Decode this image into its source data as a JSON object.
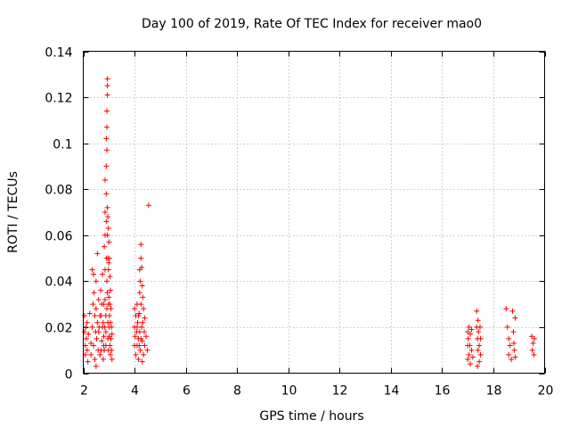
{
  "chart_data": {
    "type": "scatter",
    "title": "Day 100 of 2019, Rate Of TEC Index for receiver mao0",
    "xlabel": "GPS time / hours",
    "ylabel": "ROTI / TECUs",
    "xlim": [
      2,
      20
    ],
    "ylim": [
      0,
      0.14
    ],
    "xticks": [
      2,
      4,
      6,
      8,
      10,
      12,
      14,
      16,
      18,
      20
    ],
    "xtick_labels": [
      "2",
      "4",
      "6",
      "8",
      "10",
      "12",
      "14",
      "16",
      "18",
      "20"
    ],
    "yticks": [
      0,
      0.02,
      0.04,
      0.06,
      0.08,
      0.1,
      0.12,
      0.14
    ],
    "ytick_labels": [
      "0",
      "0.02",
      "0.04",
      "0.06",
      "0.08",
      "0.1",
      "0.12",
      "0.14"
    ],
    "grid": true,
    "marker": "+",
    "color": "#ff0000",
    "series": [
      {
        "name": "mao0",
        "points": [
          [
            2.05,
            0.025
          ],
          [
            2.05,
            0.018
          ],
          [
            2.08,
            0.012
          ],
          [
            2.08,
            0.008
          ],
          [
            2.1,
            0.02
          ],
          [
            2.12,
            0.015
          ],
          [
            2.15,
            0.022
          ],
          [
            2.15,
            0.01
          ],
          [
            2.18,
            0.005
          ],
          [
            2.2,
            0.017
          ],
          [
            2.25,
            0.026
          ],
          [
            2.3,
            0.013
          ],
          [
            2.3,
            0.008
          ],
          [
            2.35,
            0.045
          ],
          [
            2.35,
            0.02
          ],
          [
            2.38,
            0.03
          ],
          [
            2.4,
            0.043
          ],
          [
            2.4,
            0.012
          ],
          [
            2.42,
            0.035
          ],
          [
            2.45,
            0.025
          ],
          [
            2.45,
            0.006
          ],
          [
            2.48,
            0.018
          ],
          [
            2.5,
            0.04
          ],
          [
            2.5,
            0.028
          ],
          [
            2.5,
            0.003
          ],
          [
            2.52,
            0.015
          ],
          [
            2.55,
            0.052
          ],
          [
            2.55,
            0.022
          ],
          [
            2.58,
            0.01
          ],
          [
            2.6,
            0.032
          ],
          [
            2.62,
            0.02
          ],
          [
            2.65,
            0.008
          ],
          [
            2.68,
            0.036
          ],
          [
            2.7,
            0.025
          ],
          [
            2.72,
            0.014
          ],
          [
            2.75,
            0.043
          ],
          [
            2.75,
            0.02
          ],
          [
            2.78,
            0.006
          ],
          [
            2.8,
            0.03
          ],
          [
            2.8,
            0.016
          ],
          [
            2.82,
            0.01
          ],
          [
            2.82,
            0.055
          ],
          [
            2.85,
            0.084
          ],
          [
            2.85,
            0.07
          ],
          [
            2.85,
            0.06
          ],
          [
            2.85,
            0.045
          ],
          [
            2.85,
            0.032
          ],
          [
            2.88,
            0.025
          ],
          [
            2.88,
            0.018
          ],
          [
            2.88,
            0.012
          ],
          [
            2.9,
            0.102
          ],
          [
            2.9,
            0.09
          ],
          [
            2.9,
            0.078
          ],
          [
            2.9,
            0.066
          ],
          [
            2.9,
            0.05
          ],
          [
            2.92,
            0.114
          ],
          [
            2.92,
            0.107
          ],
          [
            2.92,
            0.097
          ],
          [
            2.92,
            0.04
          ],
          [
            2.92,
            0.028
          ],
          [
            2.94,
            0.128
          ],
          [
            2.94,
            0.125
          ],
          [
            2.94,
            0.121
          ],
          [
            2.94,
            0.072
          ],
          [
            2.94,
            0.06
          ],
          [
            2.94,
            0.035
          ],
          [
            2.96,
            0.068
          ],
          [
            2.96,
            0.05
          ],
          [
            2.96,
            0.022
          ],
          [
            2.96,
            0.015
          ],
          [
            2.98,
            0.063
          ],
          [
            2.98,
            0.045
          ],
          [
            2.98,
            0.03
          ],
          [
            2.98,
            0.01
          ],
          [
            3.0,
            0.057
          ],
          [
            3.0,
            0.048
          ],
          [
            3.0,
            0.033
          ],
          [
            3.0,
            0.02
          ],
          [
            3.02,
            0.05
          ],
          [
            3.02,
            0.025
          ],
          [
            3.02,
            0.016
          ],
          [
            3.04,
            0.042
          ],
          [
            3.04,
            0.03
          ],
          [
            3.04,
            0.012
          ],
          [
            3.06,
            0.036
          ],
          [
            3.06,
            0.022
          ],
          [
            3.06,
            0.008
          ],
          [
            3.08,
            0.028
          ],
          [
            3.08,
            0.015
          ],
          [
            3.1,
            0.02
          ],
          [
            3.1,
            0.01
          ],
          [
            3.12,
            0.017
          ],
          [
            3.12,
            0.006
          ],
          [
            2.6,
            0.018
          ],
          [
            2.65,
            0.025
          ],
          [
            2.7,
            0.01
          ],
          [
            2.72,
            0.03
          ],
          [
            2.78,
            0.022
          ],
          [
            2.8,
            0.012
          ],
          [
            2.84,
            0.02
          ],
          [
            4.0,
            0.028
          ],
          [
            4.0,
            0.02
          ],
          [
            4.0,
            0.012
          ],
          [
            4.02,
            0.016
          ],
          [
            4.05,
            0.025
          ],
          [
            4.05,
            0.008
          ],
          [
            4.08,
            0.018
          ],
          [
            4.1,
            0.03
          ],
          [
            4.1,
            0.012
          ],
          [
            4.12,
            0.022
          ],
          [
            4.15,
            0.015
          ],
          [
            4.15,
            0.006
          ],
          [
            4.18,
            0.026
          ],
          [
            4.2,
            0.045
          ],
          [
            4.2,
            0.035
          ],
          [
            4.2,
            0.018
          ],
          [
            4.22,
            0.04
          ],
          [
            4.22,
            0.01
          ],
          [
            4.25,
            0.056
          ],
          [
            4.25,
            0.05
          ],
          [
            4.25,
            0.03
          ],
          [
            4.28,
            0.046
          ],
          [
            4.28,
            0.02
          ],
          [
            4.3,
            0.038
          ],
          [
            4.3,
            0.014
          ],
          [
            4.32,
            0.033
          ],
          [
            4.32,
            0.022
          ],
          [
            4.35,
            0.028
          ],
          [
            4.35,
            0.008
          ],
          [
            4.38,
            0.018
          ],
          [
            4.4,
            0.024
          ],
          [
            4.4,
            0.012
          ],
          [
            4.45,
            0.016
          ],
          [
            4.5,
            0.01
          ],
          [
            4.55,
            0.073
          ],
          [
            4.1,
            0.02
          ],
          [
            4.15,
            0.025
          ],
          [
            4.25,
            0.015
          ],
          [
            4.3,
            0.005
          ],
          [
            4.18,
            0.012
          ],
          [
            17.0,
            0.018
          ],
          [
            17.0,
            0.012
          ],
          [
            17.0,
            0.006
          ],
          [
            17.02,
            0.015
          ],
          [
            17.05,
            0.02
          ],
          [
            17.05,
            0.008
          ],
          [
            17.08,
            0.012
          ],
          [
            17.1,
            0.017
          ],
          [
            17.1,
            0.004
          ],
          [
            17.15,
            0.01
          ],
          [
            17.15,
            0.019
          ],
          [
            17.2,
            0.007
          ],
          [
            17.35,
            0.027
          ],
          [
            17.35,
            0.02
          ],
          [
            17.38,
            0.015
          ],
          [
            17.4,
            0.023
          ],
          [
            17.4,
            0.01
          ],
          [
            17.42,
            0.018
          ],
          [
            17.45,
            0.012
          ],
          [
            17.45,
            0.005
          ],
          [
            17.48,
            0.02
          ],
          [
            17.5,
            0.008
          ],
          [
            17.5,
            0.015
          ],
          [
            17.38,
            0.003
          ],
          [
            18.5,
            0.028
          ],
          [
            18.55,
            0.02
          ],
          [
            18.6,
            0.015
          ],
          [
            18.6,
            0.008
          ],
          [
            18.65,
            0.012
          ],
          [
            18.7,
            0.006
          ],
          [
            18.75,
            0.027
          ],
          [
            18.78,
            0.018
          ],
          [
            18.8,
            0.013
          ],
          [
            18.82,
            0.01
          ],
          [
            18.85,
            0.024
          ],
          [
            18.85,
            0.007
          ],
          [
            19.5,
            0.016
          ],
          [
            19.52,
            0.01
          ],
          [
            19.55,
            0.013
          ],
          [
            19.58,
            0.008
          ],
          [
            19.6,
            0.015
          ]
        ]
      }
    ]
  }
}
